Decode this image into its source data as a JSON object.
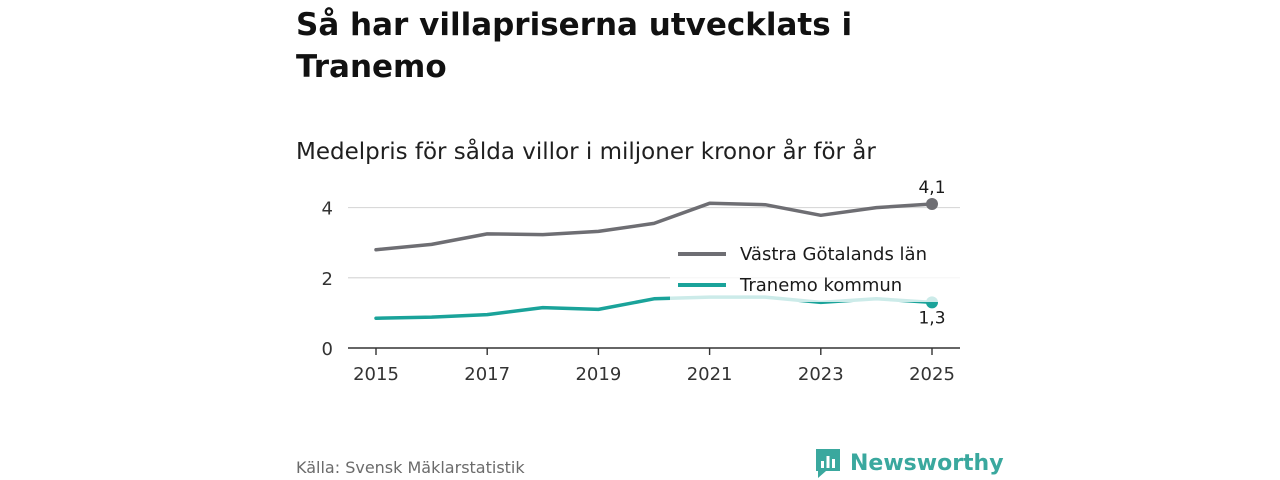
{
  "header": {
    "title": "Så har villapriserna utvecklats i Tranemo",
    "subtitle": "Medelpris för sålda villor i miljoner kronor år för år"
  },
  "footer": {
    "source": "Källa: Svensk Mäklarstatistik",
    "brand": "Newsworthy"
  },
  "colors": {
    "region": "#6e6e73",
    "municipality": "#1aa39a",
    "grid": "#d9d9d9",
    "axis": "#333333",
    "brand": "#3aa89e"
  },
  "chart_data": {
    "type": "line",
    "title": "Medelpris för sålda villor i miljoner kronor år för år",
    "xlabel": "",
    "ylabel": "",
    "x": [
      2015,
      2016,
      2017,
      2018,
      2019,
      2020,
      2021,
      2022,
      2023,
      2024,
      2025
    ],
    "xticks": [
      2015,
      2017,
      2019,
      2021,
      2023,
      2025
    ],
    "yticks": [
      0,
      2,
      4
    ],
    "ylim": [
      0,
      4.5
    ],
    "grid": true,
    "legend_position": "center-right",
    "series": [
      {
        "name": "Västra Götalands län",
        "color": "#6e6e73",
        "values": [
          2.8,
          2.95,
          3.25,
          3.23,
          3.32,
          3.55,
          4.12,
          4.08,
          3.78,
          4.0,
          4.1
        ],
        "end_label": "4,1"
      },
      {
        "name": "Tranemo kommun",
        "color": "#1aa39a",
        "values": [
          0.85,
          0.88,
          0.95,
          1.15,
          1.1,
          1.4,
          1.45,
          1.45,
          1.3,
          1.4,
          1.3
        ],
        "end_label": "1,3"
      }
    ]
  }
}
